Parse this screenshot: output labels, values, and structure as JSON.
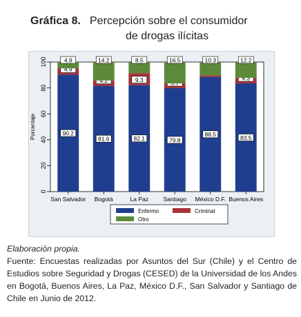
{
  "figure": {
    "number": "Gráfica 8.",
    "title_line1": "Percepción sobre el consumidor",
    "title_line2": "de drogas ilícitas"
  },
  "chart_data": {
    "type": "bar",
    "stacked": true,
    "categories": [
      "San Salvador",
      "Bogotá",
      "La Paz",
      "Santiago",
      "México D.F.",
      "Buenos Aires"
    ],
    "series": [
      {
        "name": "Enfermo",
        "color": "#1f3e8f",
        "values": [
          90.2,
          81.6,
          82.1,
          79.8,
          88.5,
          83.5
        ]
      },
      {
        "name": "Criminal",
        "color": "#a8343a",
        "values": [
          4.9,
          4.2,
          9.3,
          3.7,
          1.2,
          4.3
        ]
      },
      {
        "name": "Otro",
        "color": "#5c8a3a",
        "values": [
          4.9,
          14.2,
          8.5,
          16.5,
          10.3,
          12.2
        ]
      }
    ],
    "ylabel": "Porcentaje",
    "ylim": [
      0,
      100
    ],
    "yticks": [
      0,
      20,
      40,
      60,
      80,
      100
    ],
    "grid": false,
    "legend_position": "bottom"
  },
  "notes": {
    "elaboration": "Elaboración propia.",
    "source": "Fuente: Encuestas realizadas por Asuntos del Sur (Chile) y el Centro de Estudios sobre Seguridad y Drogas (CESED) de la Universidad de los Andes en Bogotá, Buenos Aires, La Paz, México D.F., San Salvador y Santiago de Chile en Junio de 2012."
  }
}
